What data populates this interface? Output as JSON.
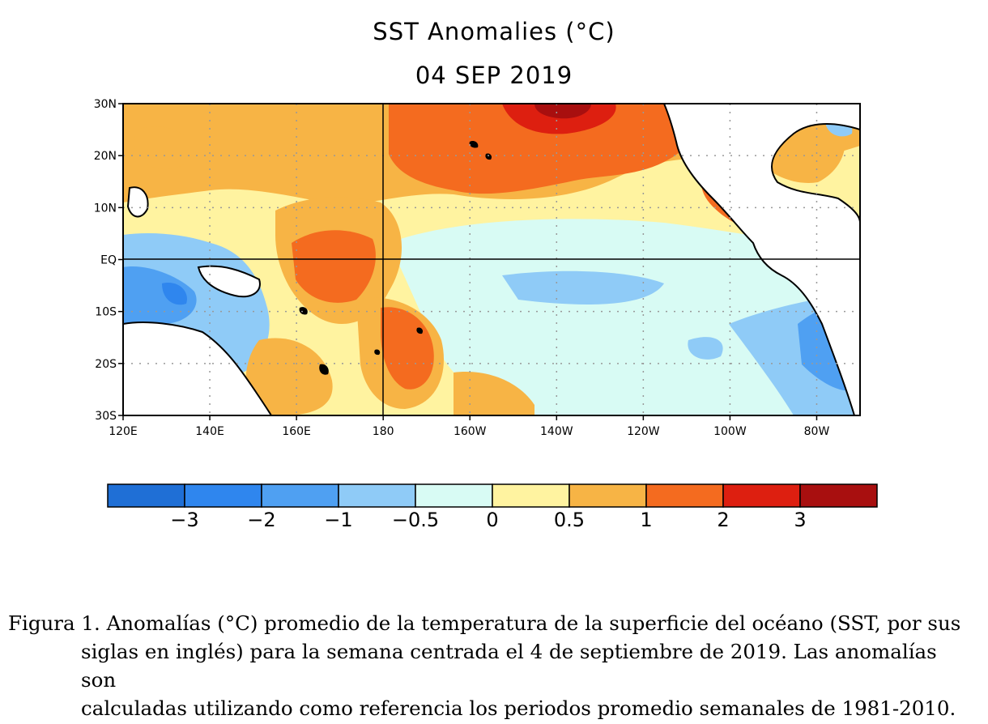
{
  "title": "SST Anomalies (°C)",
  "date": "04 SEP 2019",
  "map": {
    "lat_labels": [
      "30N",
      "20N",
      "10N",
      "EQ",
      "10S",
      "20S",
      "30S"
    ],
    "lon_labels": [
      "120E",
      "140E",
      "160E",
      "180",
      "160W",
      "140W",
      "120W",
      "100W",
      "80W"
    ],
    "lon_range": [
      120,
      290
    ],
    "lat_range": [
      -30,
      30
    ]
  },
  "legend": {
    "colors": [
      "#1f6fd6",
      "#2f86ee",
      "#4fa0f2",
      "#8fcbf7",
      "#d8fbf4",
      "#fff3a0",
      "#f7b445",
      "#f46b1f",
      "#dd1f10",
      "#a80f0f"
    ],
    "tick_labels": [
      "−3",
      "−2",
      "−1",
      "−0.5",
      "0",
      "0.5",
      "1",
      "2",
      "3"
    ]
  },
  "caption": {
    "line1": "Figura 1. Anomalías (°C) promedio de la temperatura de la superficie del océano (SST, por sus",
    "line2": "siglas en inglés) para la semana centrada el 4 de septiembre de 2019. Las anomalías son",
    "line3": "calculadas utilizando como referencia los periodos promedio semanales de 1981-2010."
  }
}
